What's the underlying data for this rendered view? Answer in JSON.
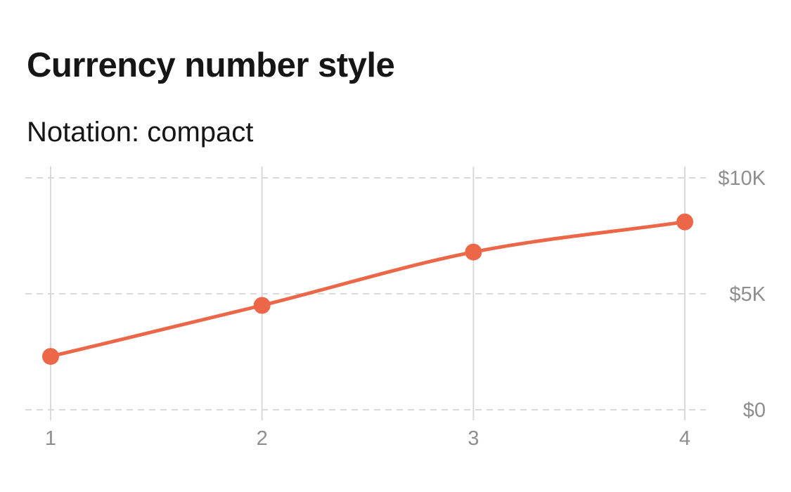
{
  "chart_data": {
    "type": "line",
    "title": "Currency number style",
    "subtitle": "Notation: compact",
    "x": [
      1,
      2,
      3,
      4
    ],
    "series": [
      {
        "values": [
          2300,
          4500,
          6800,
          8100
        ]
      }
    ],
    "x_ticks": [
      "1",
      "2",
      "3",
      "4"
    ],
    "y_ticks": [
      {
        "value": 0,
        "label": "$0"
      },
      {
        "value": 5000,
        "label": "$5K"
      },
      {
        "value": 10000,
        "label": "$10K"
      }
    ],
    "ylim": [
      0,
      10000
    ],
    "xlim": [
      1,
      4
    ],
    "y_axis_position": "right",
    "grid": true,
    "curve": "smooth",
    "colors": {
      "line": "#ec6748",
      "grid": "#d9d9d9",
      "tick_text": "#8e8e8e",
      "title": "#161616"
    }
  }
}
